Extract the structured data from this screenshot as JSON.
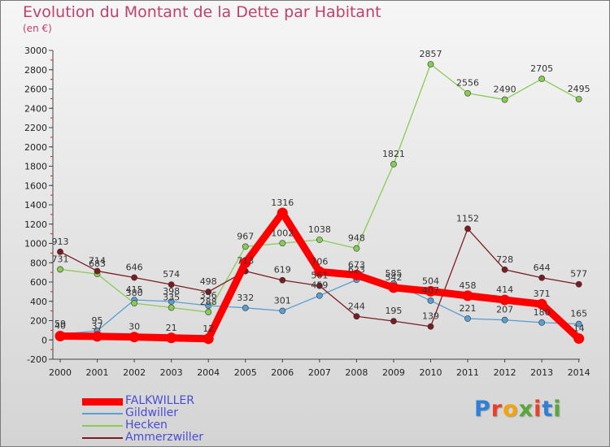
{
  "title": "Evolution du Montant de la Dette par Habitant",
  "subtitle": "(en €)",
  "logo": {
    "text": "Proxiti",
    "letter_colors": [
      "#2e7fd6",
      "#e8412a",
      "#f5a30a",
      "#5aa63a",
      "#e8412a",
      "#2e7fd6",
      "#5aa63a"
    ]
  },
  "chart_data": {
    "type": "line",
    "title": "Evolution du Montant de la Dette par Habitant",
    "ylabel": "(en €)",
    "x": [
      "2000",
      "2001",
      "2002",
      "2003",
      "2004",
      "2005",
      "2006",
      "2007",
      "2008",
      "2009",
      "2010",
      "2011",
      "2012",
      "2013",
      "2014"
    ],
    "ylim": [
      -200,
      3000
    ],
    "yticks": [
      -200,
      0,
      200,
      400,
      600,
      800,
      1000,
      1200,
      1400,
      1600,
      1800,
      2000,
      2200,
      2400,
      2600,
      2800,
      3000
    ],
    "grid": false,
    "legend_position": "bottom-left",
    "series": [
      {
        "name": "FALKWILLER",
        "color": "#ff0000",
        "emphasis": true,
        "values": [
          40,
          37,
          30,
          21,
          12,
          800,
          1316,
          706,
          673,
          542,
          504,
          458,
          414,
          371,
          14
        ],
        "labels": [
          "40",
          "37",
          "30",
          "21",
          "12",
          "",
          "1316",
          "706",
          "673",
          "542",
          "504",
          "458",
          "414",
          "371",
          "14"
        ]
      },
      {
        "name": "Gildwiller",
        "color": "#5a9fd4",
        "values": [
          59,
          95,
          415,
          398,
          356,
          332,
          301,
          459,
          623,
          585,
          407,
          221,
          207,
          180,
          165
        ],
        "labels": [
          "59",
          "95",
          "415",
          "398",
          "356",
          "332",
          "301",
          "459",
          "623",
          "585",
          "407",
          "221",
          "207",
          "180",
          "165"
        ]
      },
      {
        "name": "Hecken",
        "color": "#88cc55",
        "values": [
          731,
          683,
          380,
          335,
          288,
          967,
          1002,
          1038,
          948,
          1821,
          2857,
          2556,
          2490,
          2705,
          2495
        ],
        "labels": [
          "731",
          "683",
          "380",
          "335",
          "288",
          "967",
          "1002",
          "1038",
          "948",
          "1821",
          "2857",
          "2556",
          "2490",
          "2705",
          "2495"
        ]
      },
      {
        "name": "Ammerzwiller",
        "color": "#7a1d22",
        "values": [
          913,
          714,
          646,
          574,
          498,
          713,
          619,
          561,
          244,
          195,
          139,
          1152,
          728,
          644,
          577
        ],
        "labels": [
          "913",
          "714",
          "646",
          "574",
          "498",
          "713",
          "619",
          "561",
          "244",
          "195",
          "139",
          "1152",
          "728",
          "644",
          "577"
        ]
      }
    ]
  }
}
